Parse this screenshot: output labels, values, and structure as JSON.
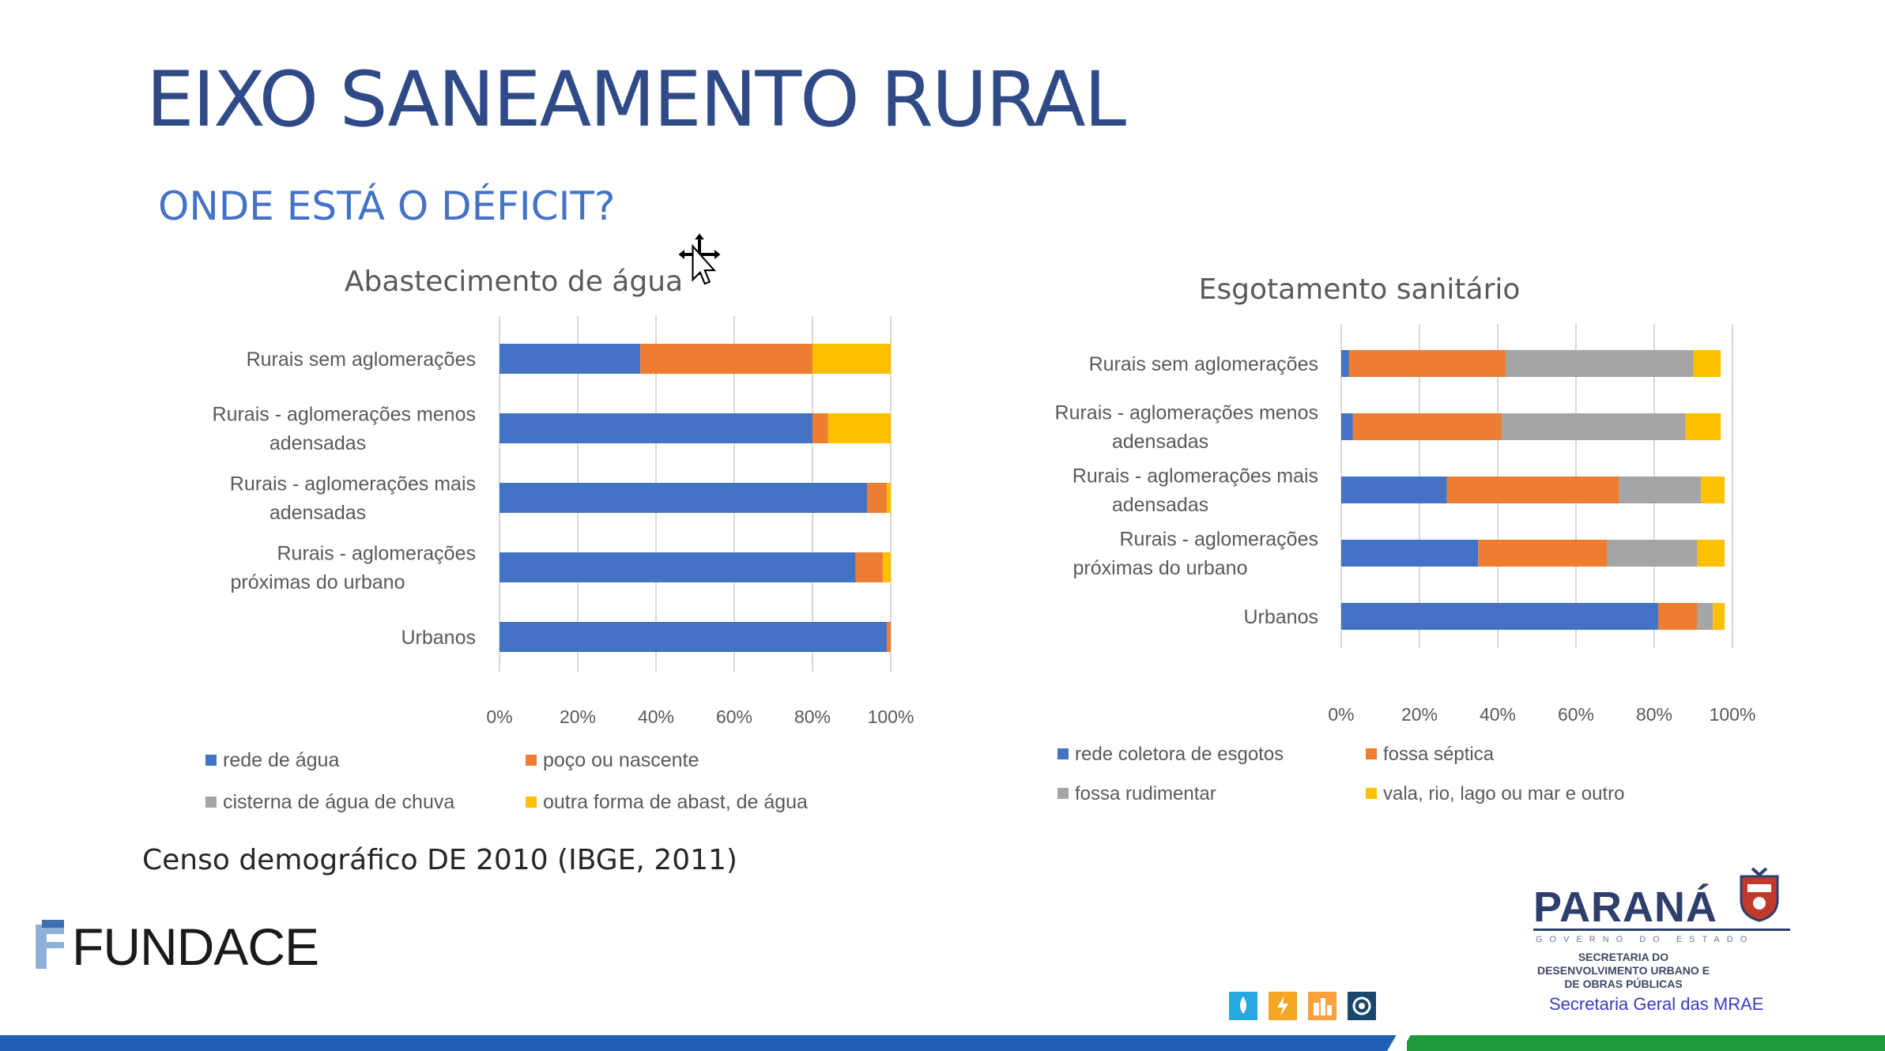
{
  "slide": {
    "title": "EIXO SANEAMENTO RURAL",
    "subtitle": "ONDE ESTÁ O DÉFICIT?",
    "source": "Censo demográfico DE 2010 (IBGE, 2011)"
  },
  "logos": {
    "fundace": "FUNDACE",
    "parana": "PARANÁ",
    "parana_tagline": "GOVERNO DO ESTADO",
    "parana_secretaria": "SECRETARIA DO DESENVOLVIMENTO URBANO E DE OBRAS PÚBLICAS",
    "mrae": "Secretaria Geral das MRAE"
  },
  "colors": {
    "blue": "#4472c4",
    "orange": "#ed7d31",
    "gray": "#a5a5a5",
    "yellow": "#ffc000"
  },
  "chart_data": [
    {
      "type": "bar",
      "orientation": "horizontal",
      "stacked": "percent",
      "title": "Abastecimento de água",
      "categories": [
        "Rurais sem aglomerações",
        "Rurais - aglomerações menos adensadas",
        "Rurais - aglomerações mais adensadas",
        "Rurais - aglomerações próximas do urbano",
        "Urbanos"
      ],
      "series": [
        {
          "name": "rede de água",
          "color": "#4472c4",
          "values": [
            36,
            80,
            94,
            91,
            99
          ]
        },
        {
          "name": "poço ou nascente",
          "color": "#ed7d31",
          "values": [
            44,
            4,
            5,
            7,
            1
          ]
        },
        {
          "name": "cisterna de água de chuva",
          "color": "#a5a5a5",
          "values": [
            0,
            0,
            0,
            0,
            0
          ]
        },
        {
          "name": "outra forma de abast, de água",
          "color": "#ffc000",
          "values": [
            20,
            16,
            1,
            2,
            0
          ]
        }
      ],
      "xlim": [
        0,
        100
      ],
      "xticks": [
        "0%",
        "20%",
        "40%",
        "60%",
        "80%",
        "100%"
      ],
      "grid": true,
      "legend": "bottom"
    },
    {
      "type": "bar",
      "orientation": "horizontal",
      "stacked": "percent",
      "title": "Esgotamento sanitário",
      "categories": [
        "Rurais sem aglomerações",
        "Rurais - aglomerações menos adensadas",
        "Rurais - aglomerações mais adensadas",
        "Rurais - aglomerações próximas do urbano",
        "Urbanos"
      ],
      "series": [
        {
          "name": "rede coletora de esgotos",
          "color": "#4472c4",
          "values": [
            2,
            3,
            27,
            35,
            81
          ]
        },
        {
          "name": "fossa séptica",
          "color": "#ed7d31",
          "values": [
            40,
            38,
            44,
            33,
            10
          ]
        },
        {
          "name": "fossa rudimentar",
          "color": "#a5a5a5",
          "values": [
            48,
            47,
            21,
            23,
            4
          ]
        },
        {
          "name": "vala, rio, lago ou mar e outro",
          "color": "#ffc000",
          "values": [
            7,
            9,
            6,
            7,
            3
          ]
        }
      ],
      "xlim": [
        0,
        100
      ],
      "xticks": [
        "0%",
        "20%",
        "40%",
        "60%",
        "80%",
        "100%"
      ],
      "grid": true,
      "legend": "bottom"
    }
  ]
}
